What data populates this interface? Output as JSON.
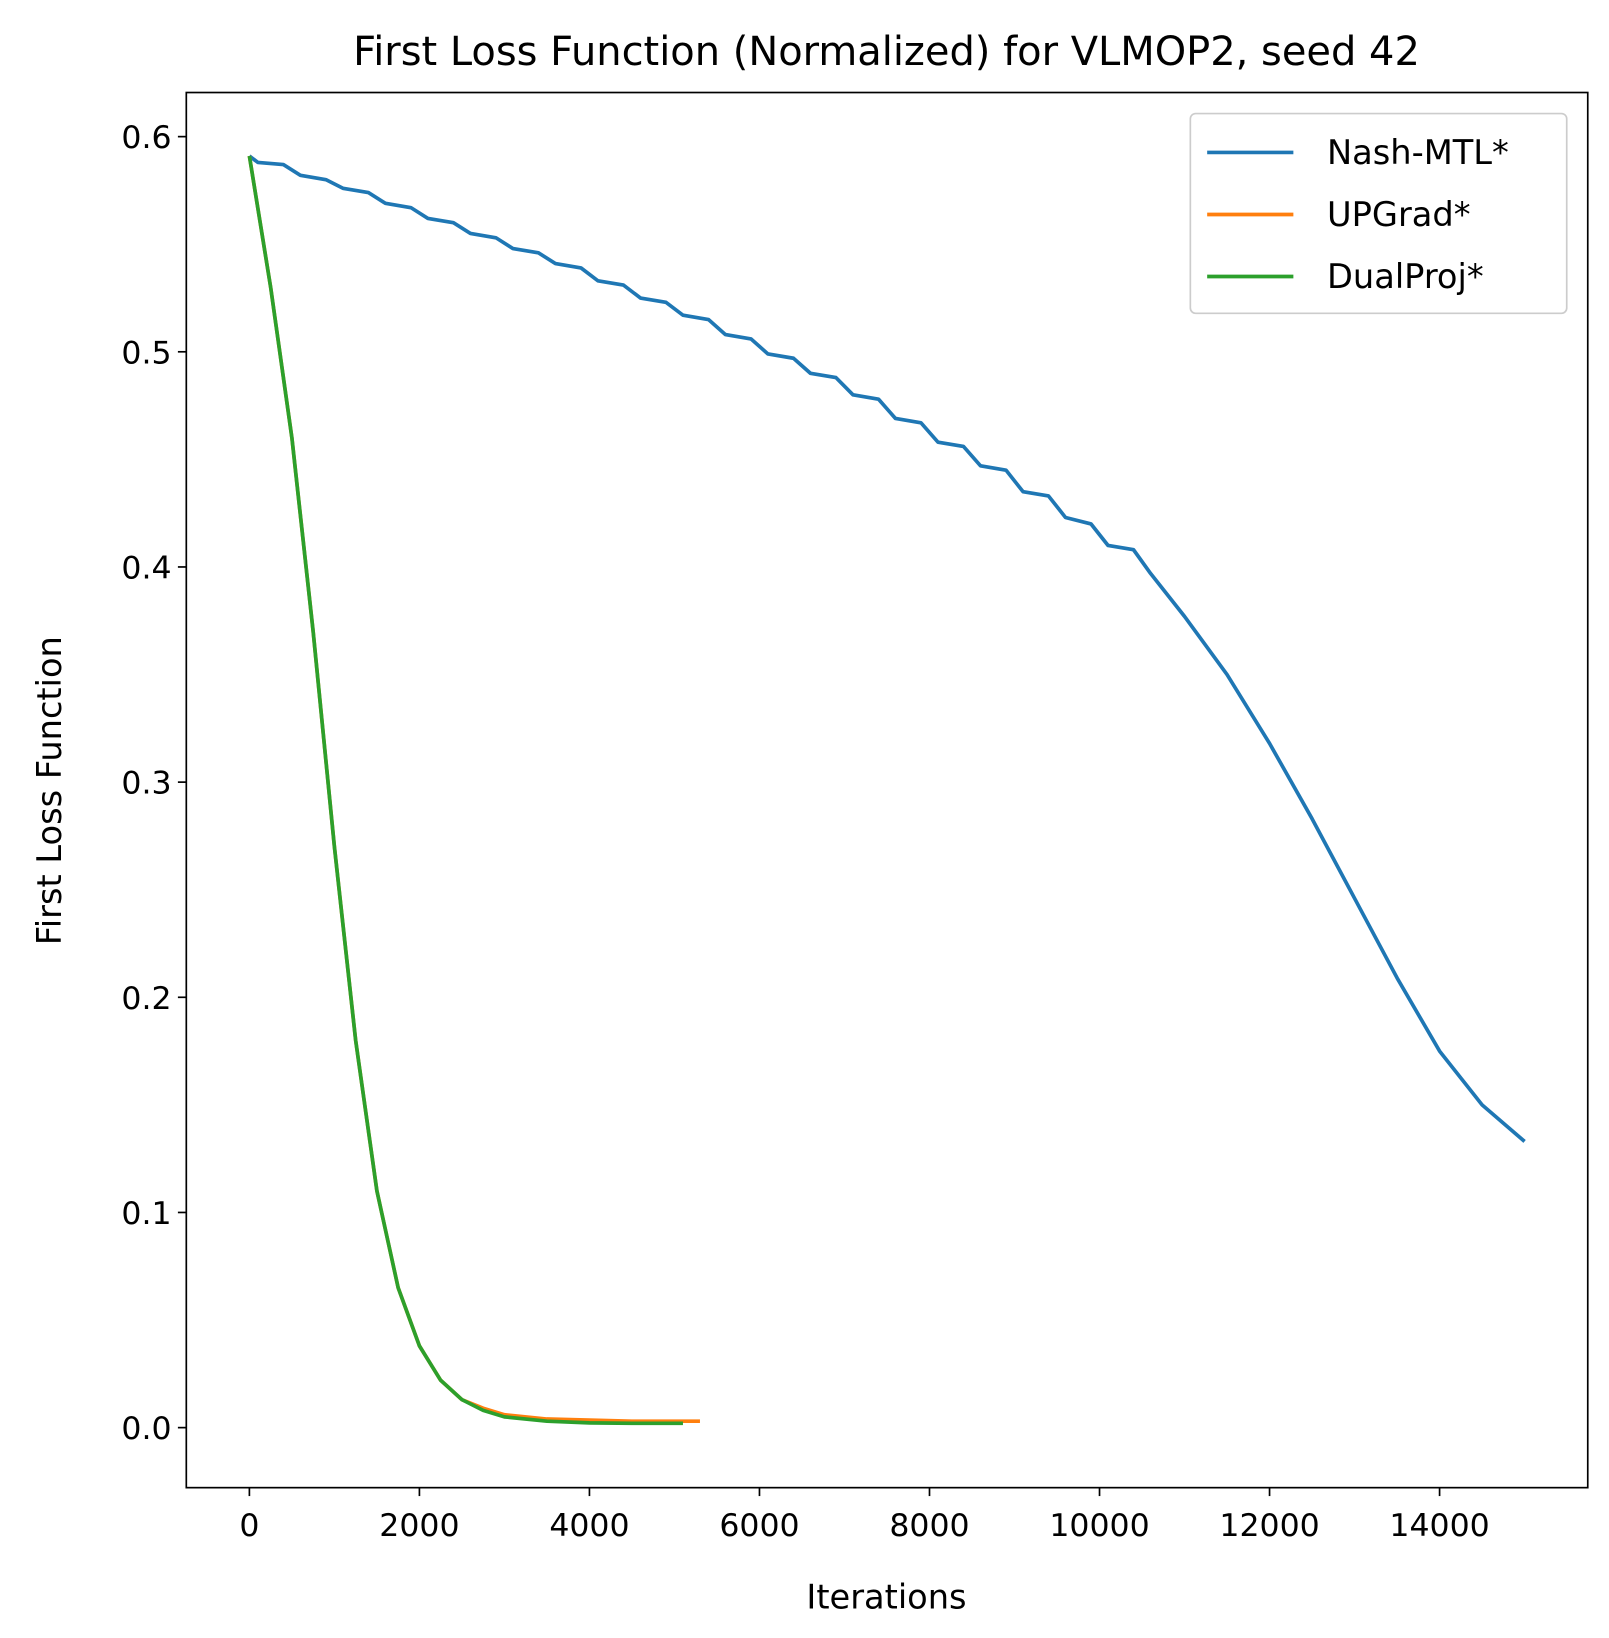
{
  "chart_data": {
    "type": "line",
    "title": "First Loss Function (Normalized) for VLMOP2, seed 42",
    "xlabel": "Iterations",
    "ylabel": "First Loss Function",
    "xlim": [
      -742,
      15743
    ],
    "ylim": [
      -0.0279,
      0.6205
    ],
    "xticks": [
      0,
      2000,
      4000,
      6000,
      8000,
      10000,
      12000,
      14000
    ],
    "yticks": [
      {
        "value": 0,
        "label": "0.0"
      },
      0.1,
      0.2,
      0.3,
      0.4,
      0.5,
      0.6
    ],
    "legend": "upper right",
    "series": [
      {
        "name": "Nash-MTL*",
        "color": "#1f77b4",
        "x": [
          0,
          100,
          400,
          600,
          900,
          1100,
          1400,
          1600,
          1900,
          2100,
          2400,
          2600,
          2900,
          3100,
          3400,
          3600,
          3900,
          4100,
          4400,
          4600,
          4900,
          5100,
          5400,
          5600,
          5900,
          6100,
          6400,
          6600,
          6900,
          7100,
          7400,
          7600,
          7900,
          8100,
          8400,
          8600,
          8900,
          9100,
          9400,
          9600,
          9900,
          10100,
          10400,
          10600,
          11000,
          11500,
          12000,
          12500,
          13000,
          13500,
          14000,
          14500,
          15000
        ],
        "values": [
          0.591,
          0.588,
          0.587,
          0.582,
          0.58,
          0.576,
          0.574,
          0.569,
          0.567,
          0.562,
          0.56,
          0.555,
          0.553,
          0.548,
          0.546,
          0.541,
          0.539,
          0.533,
          0.531,
          0.525,
          0.523,
          0.517,
          0.515,
          0.508,
          0.506,
          0.499,
          0.497,
          0.49,
          0.488,
          0.48,
          0.478,
          0.469,
          0.467,
          0.458,
          0.456,
          0.447,
          0.445,
          0.435,
          0.433,
          0.423,
          0.42,
          0.41,
          0.408,
          0.397,
          0.377,
          0.35,
          0.318,
          0.283,
          0.246,
          0.209,
          0.175,
          0.15,
          0.133
        ]
      },
      {
        "name": "UPGrad*",
        "color": "#ff7f0e",
        "x": [
          0,
          250,
          500,
          750,
          1000,
          1250,
          1500,
          1750,
          2000,
          2250,
          2500,
          2750,
          3000,
          3500,
          4000,
          4500,
          5000,
          5300
        ],
        "values": [
          0.591,
          0.53,
          0.46,
          0.37,
          0.27,
          0.18,
          0.11,
          0.065,
          0.038,
          0.022,
          0.013,
          0.009,
          0.006,
          0.004,
          0.0035,
          0.003,
          0.003,
          0.003
        ]
      },
      {
        "name": "DualProj*",
        "color": "#2ca02c",
        "x": [
          0,
          250,
          500,
          750,
          1000,
          1250,
          1500,
          1750,
          2000,
          2250,
          2500,
          2750,
          3000,
          3500,
          4000,
          4500,
          5000,
          5100
        ],
        "values": [
          0.591,
          0.53,
          0.46,
          0.37,
          0.27,
          0.18,
          0.11,
          0.065,
          0.038,
          0.022,
          0.013,
          0.008,
          0.005,
          0.003,
          0.0022,
          0.002,
          0.002,
          0.002
        ]
      }
    ]
  }
}
